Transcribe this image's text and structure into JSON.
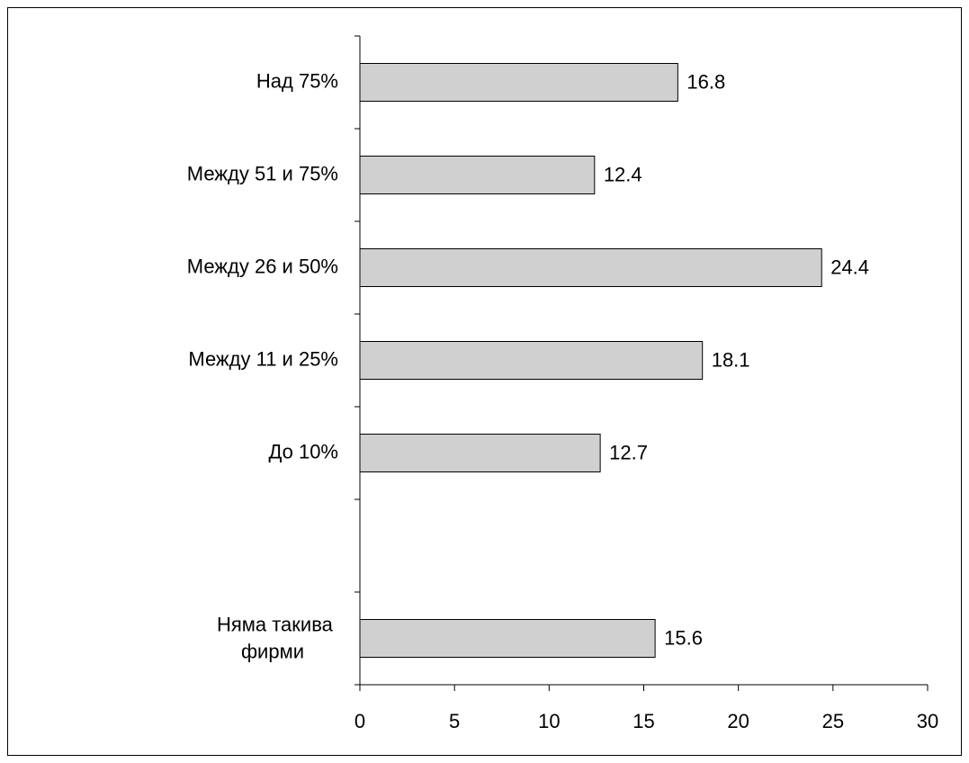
{
  "chart_data": {
    "type": "bar",
    "orientation": "horizontal",
    "categories": [
      "Над 75%",
      "Между 51 и 75%",
      "Между 26 и 50%",
      "Между 11 и 25%",
      "До 10%",
      null,
      "Няма такива фирми"
    ],
    "values": [
      16.8,
      12.4,
      24.4,
      18.1,
      12.7,
      null,
      15.6
    ],
    "color": "#d0d0d0",
    "xlim": [
      0,
      30
    ],
    "xticks": [
      0,
      5,
      10,
      15,
      20,
      25,
      30
    ],
    "grid": false
  }
}
